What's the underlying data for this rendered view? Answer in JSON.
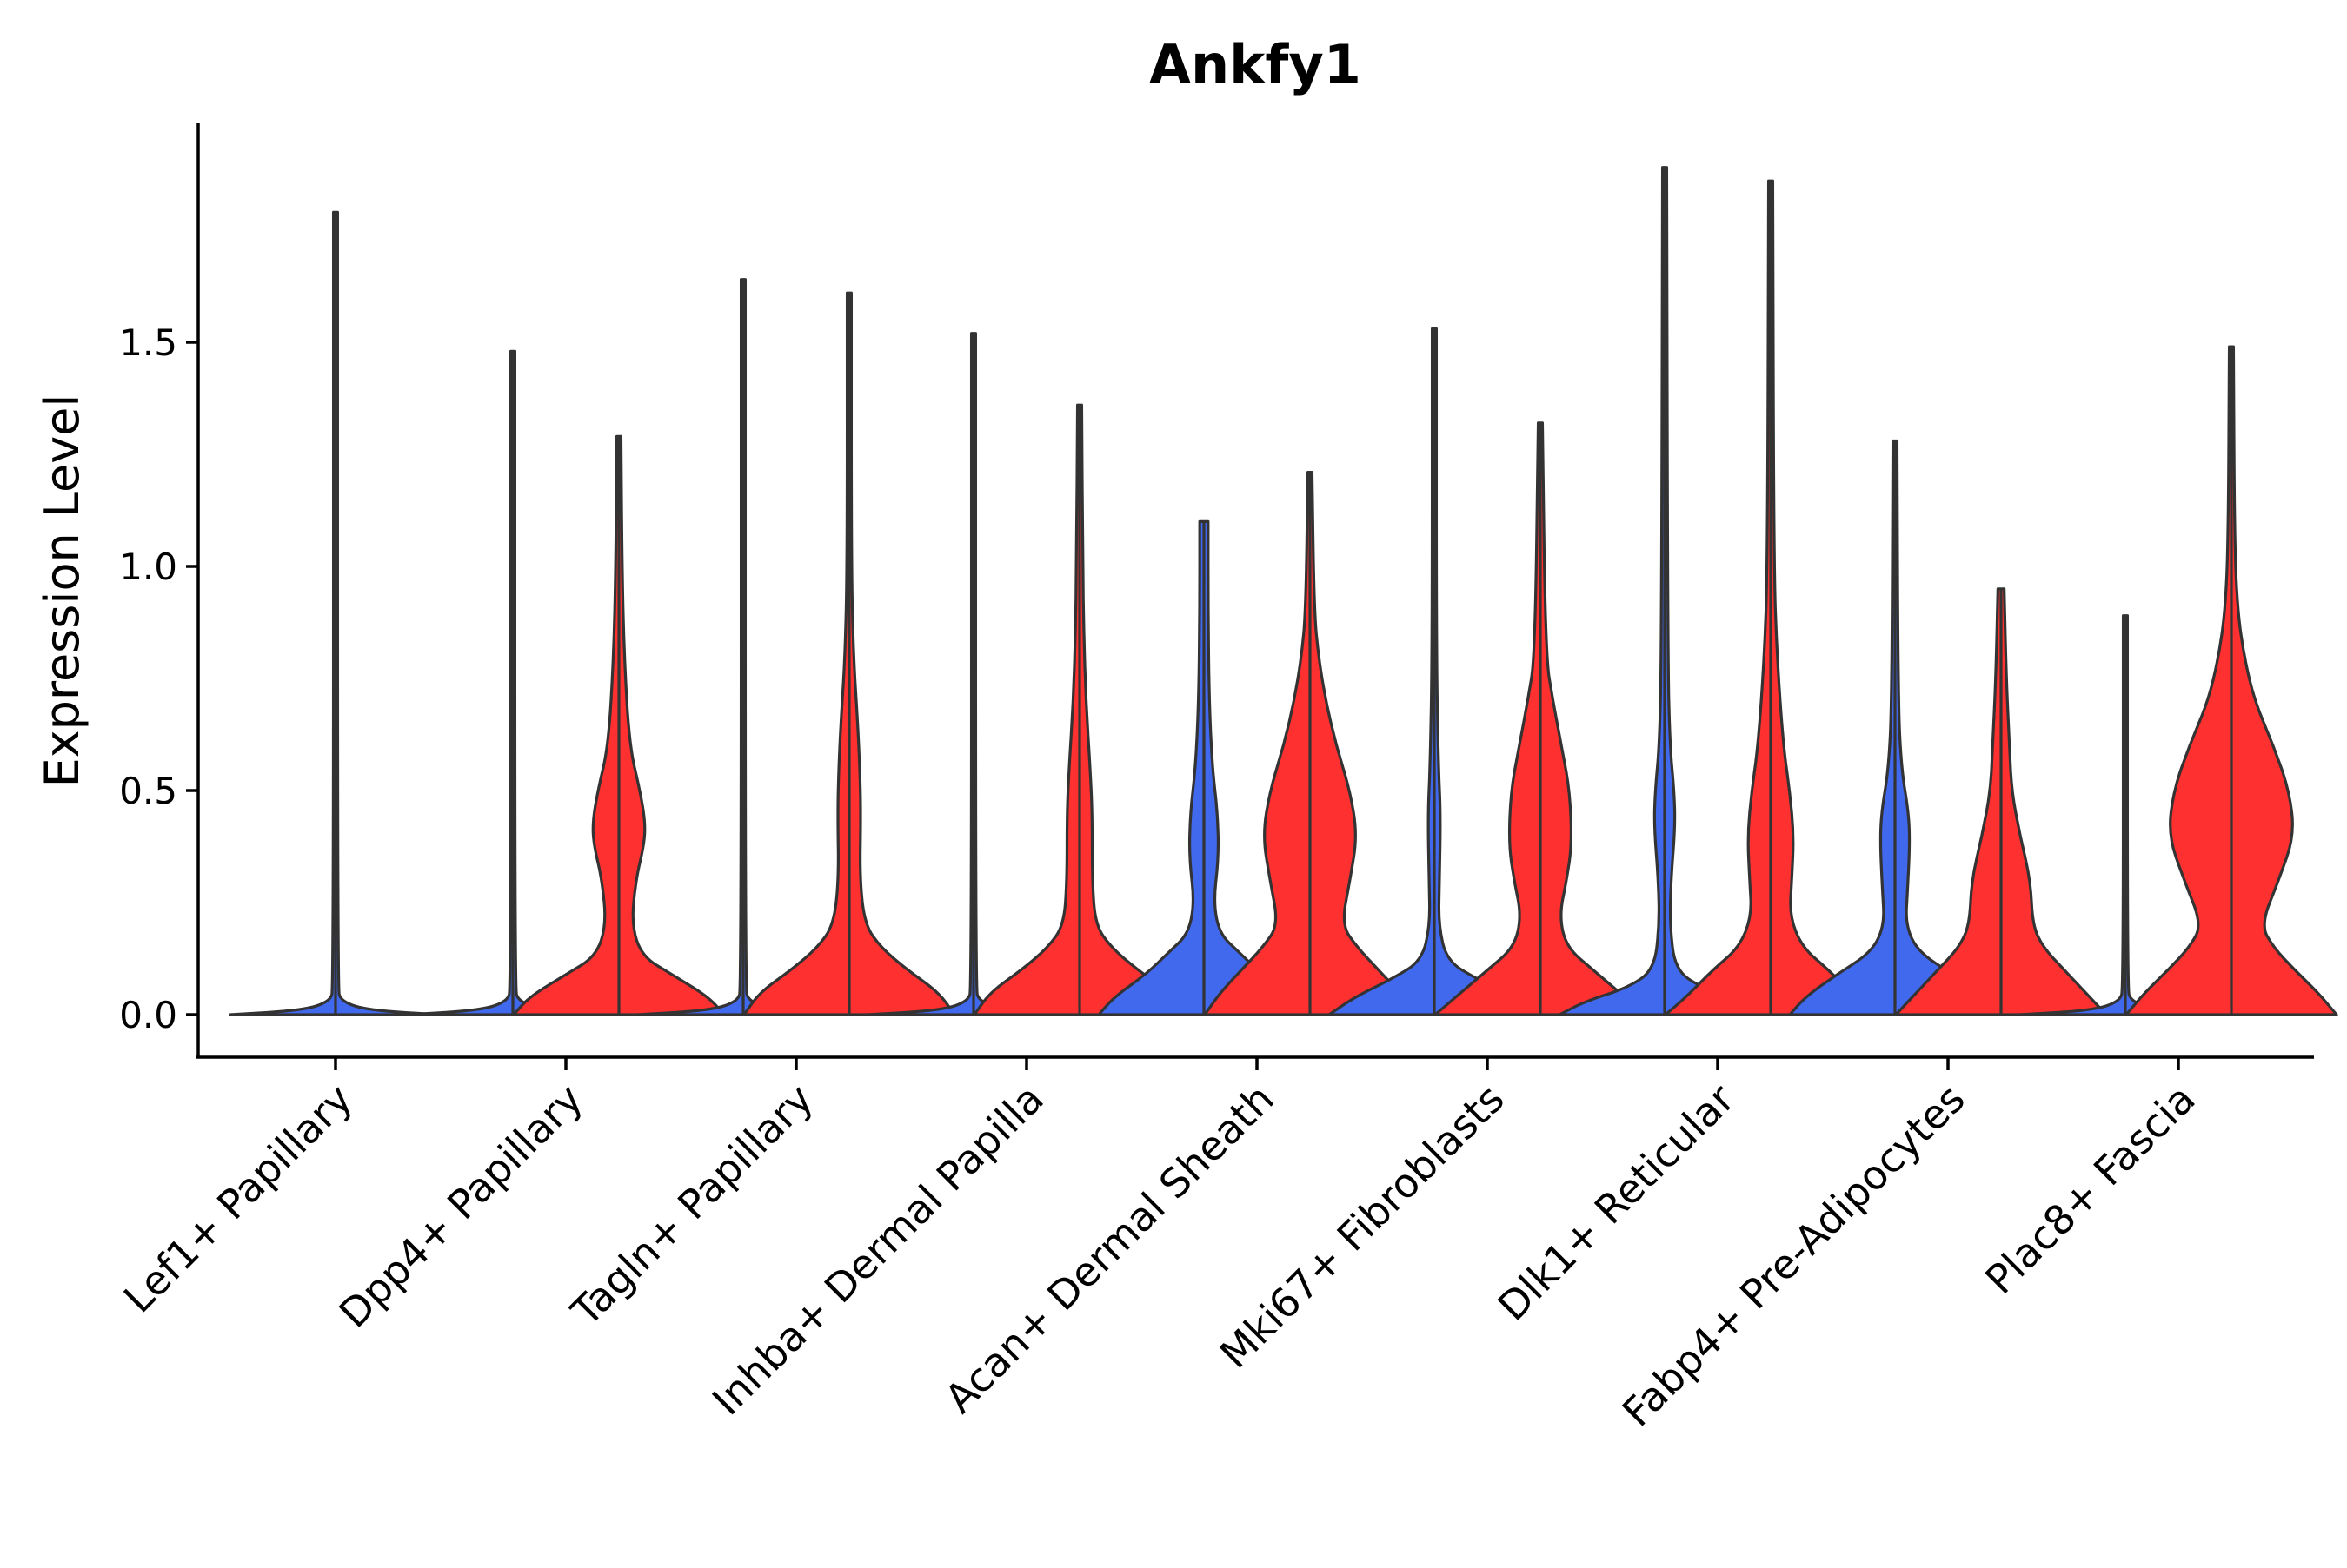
{
  "chart_data": {
    "type": "violin",
    "title": "Ankfy1",
    "xlabel": "",
    "ylabel": "Expression Level",
    "ylim": [
      -0.1,
      1.95
    ],
    "yticks": [
      0.0,
      0.5,
      1.0,
      1.5
    ],
    "ytick_labels": [
      "0.0",
      "0.5",
      "1.0",
      "1.5"
    ],
    "colors": {
      "group1": "#4169EE",
      "group2": "#FF3030",
      "outline": "#333333"
    },
    "categories": [
      "Lef1+ Papillary",
      "Dpp4+ Papillary",
      "Tagln+ Papillary",
      "Inhba+ Dermal Papilla",
      "Acan+ Dermal Sheath",
      "Mki67+ Fibroblasts",
      "Dlk1+ Reticular",
      "Fabp4+ Pre-Adipocytes",
      "Plac8+ Fascia"
    ],
    "series": [
      {
        "name": "group1",
        "color": "#4169EE",
        "violins": [
          {
            "max": 1.79,
            "profile": [
              [
                0,
                1
              ],
              [
                0.01,
                0.3
              ],
              [
                0.03,
                0.05
              ],
              [
                0.06,
                0.02
              ],
              [
                1.79,
                0.02
              ]
            ]
          },
          {
            "max": 1.48,
            "profile": [
              [
                0,
                1
              ],
              [
                0.01,
                0.3
              ],
              [
                0.03,
                0.05
              ],
              [
                0.06,
                0.02
              ],
              [
                1.48,
                0.02
              ]
            ]
          },
          {
            "max": 1.64,
            "profile": [
              [
                0,
                1
              ],
              [
                0.01,
                0.3
              ],
              [
                0.03,
                0.05
              ],
              [
                0.06,
                0.02
              ],
              [
                1.64,
                0.02
              ]
            ]
          },
          {
            "max": 1.52,
            "profile": [
              [
                0,
                1
              ],
              [
                0.01,
                0.3
              ],
              [
                0.03,
                0.05
              ],
              [
                0.06,
                0.02
              ],
              [
                1.52,
                0.02
              ]
            ]
          },
          {
            "max": 1.1,
            "profile": [
              [
                0,
                1
              ],
              [
                0.04,
                0.85
              ],
              [
                0.09,
                0.55
              ],
              [
                0.14,
                0.33
              ],
              [
                0.18,
                0.15
              ],
              [
                0.25,
                0.09
              ],
              [
                0.35,
                0.14
              ],
              [
                0.45,
                0.13
              ],
              [
                0.55,
                0.08
              ],
              [
                0.7,
                0.05
              ],
              [
                0.9,
                0.04
              ],
              [
                1.1,
                0.04
              ]
            ]
          },
          {
            "max": 1.53,
            "profile": [
              [
                0,
                1
              ],
              [
                0.04,
                0.75
              ],
              [
                0.08,
                0.4
              ],
              [
                0.12,
                0.12
              ],
              [
                0.2,
                0.04
              ],
              [
                0.3,
                0.05
              ],
              [
                0.45,
                0.06
              ],
              [
                0.55,
                0.04
              ],
              [
                0.8,
                0.02
              ],
              [
                1.53,
                0.02
              ]
            ]
          },
          {
            "max": 1.89,
            "profile": [
              [
                0,
                1
              ],
              [
                0.03,
                0.75
              ],
              [
                0.06,
                0.35
              ],
              [
                0.1,
                0.1
              ],
              [
                0.2,
                0.05
              ],
              [
                0.3,
                0.06
              ],
              [
                0.42,
                0.1
              ],
              [
                0.5,
                0.09
              ],
              [
                0.6,
                0.05
              ],
              [
                0.8,
                0.03
              ],
              [
                1.89,
                0.02
              ]
            ]
          },
          {
            "max": 1.28,
            "profile": [
              [
                0,
                1
              ],
              [
                0.04,
                0.85
              ],
              [
                0.09,
                0.55
              ],
              [
                0.14,
                0.22
              ],
              [
                0.2,
                0.1
              ],
              [
                0.28,
                0.12
              ],
              [
                0.38,
                0.14
              ],
              [
                0.45,
                0.13
              ],
              [
                0.55,
                0.06
              ],
              [
                0.7,
                0.03
              ],
              [
                1.28,
                0.02
              ]
            ]
          },
          {
            "max": 0.89,
            "profile": [
              [
                0,
                1
              ],
              [
                0.01,
                0.3
              ],
              [
                0.03,
                0.05
              ],
              [
                0.06,
                0.02
              ],
              [
                0.89,
                0.02
              ]
            ]
          }
        ]
      },
      {
        "name": "group2",
        "color": "#FF3030",
        "violins": [
          null,
          {
            "max": 1.29,
            "profile": [
              [
                0,
                1
              ],
              [
                0.04,
                0.85
              ],
              [
                0.09,
                0.5
              ],
              [
                0.13,
                0.22
              ],
              [
                0.2,
                0.12
              ],
              [
                0.3,
                0.16
              ],
              [
                0.38,
                0.24
              ],
              [
                0.43,
                0.25
              ],
              [
                0.5,
                0.2
              ],
              [
                0.6,
                0.1
              ],
              [
                0.8,
                0.05
              ],
              [
                1.0,
                0.03
              ],
              [
                1.29,
                0.02
              ]
            ]
          },
          {
            "max": 1.61,
            "profile": [
              [
                0,
                1
              ],
              [
                0.05,
                0.85
              ],
              [
                0.1,
                0.55
              ],
              [
                0.15,
                0.3
              ],
              [
                0.2,
                0.15
              ],
              [
                0.3,
                0.1
              ],
              [
                0.45,
                0.11
              ],
              [
                0.55,
                0.1
              ],
              [
                0.65,
                0.08
              ],
              [
                0.8,
                0.04
              ],
              [
                1.0,
                0.02
              ],
              [
                1.61,
                0.02
              ]
            ]
          },
          {
            "max": 1.36,
            "profile": [
              [
                0,
                1
              ],
              [
                0.05,
                0.85
              ],
              [
                0.1,
                0.55
              ],
              [
                0.15,
                0.3
              ],
              [
                0.2,
                0.15
              ],
              [
                0.3,
                0.12
              ],
              [
                0.45,
                0.12
              ],
              [
                0.55,
                0.1
              ],
              [
                0.7,
                0.06
              ],
              [
                0.85,
                0.04
              ],
              [
                1.0,
                0.03
              ],
              [
                1.36,
                0.02
              ]
            ]
          },
          {
            "max": 1.21,
            "profile": [
              [
                0,
                1
              ],
              [
                0.05,
                0.85
              ],
              [
                0.1,
                0.65
              ],
              [
                0.15,
                0.45
              ],
              [
                0.2,
                0.3
              ],
              [
                0.3,
                0.38
              ],
              [
                0.4,
                0.45
              ],
              [
                0.5,
                0.38
              ],
              [
                0.6,
                0.25
              ],
              [
                0.7,
                0.15
              ],
              [
                0.8,
                0.08
              ],
              [
                0.9,
                0.04
              ],
              [
                1.21,
                0.02
              ]
            ]
          },
          {
            "max": 1.32,
            "profile": [
              [
                0,
                1
              ],
              [
                0.04,
                0.8
              ],
              [
                0.1,
                0.5
              ],
              [
                0.15,
                0.25
              ],
              [
                0.22,
                0.18
              ],
              [
                0.3,
                0.25
              ],
              [
                0.38,
                0.3
              ],
              [
                0.5,
                0.28
              ],
              [
                0.6,
                0.2
              ],
              [
                0.7,
                0.12
              ],
              [
                0.8,
                0.05
              ],
              [
                1.32,
                0.02
              ]
            ]
          },
          {
            "max": 1.86,
            "profile": [
              [
                0,
                1
              ],
              [
                0.04,
                0.8
              ],
              [
                0.1,
                0.55
              ],
              [
                0.15,
                0.3
              ],
              [
                0.22,
                0.18
              ],
              [
                0.3,
                0.2
              ],
              [
                0.4,
                0.22
              ],
              [
                0.5,
                0.18
              ],
              [
                0.6,
                0.12
              ],
              [
                0.8,
                0.06
              ],
              [
                1.0,
                0.03
              ],
              [
                1.86,
                0.02
              ]
            ]
          },
          {
            "max": 0.95,
            "profile": [
              [
                0,
                1
              ],
              [
                0.05,
                0.8
              ],
              [
                0.1,
                0.6
              ],
              [
                0.15,
                0.4
              ],
              [
                0.2,
                0.3
              ],
              [
                0.3,
                0.28
              ],
              [
                0.4,
                0.18
              ],
              [
                0.5,
                0.1
              ],
              [
                0.6,
                0.08
              ],
              [
                0.75,
                0.05
              ],
              [
                0.95,
                0.03
              ]
            ]
          },
          {
            "max": 1.49,
            "profile": [
              [
                0,
                1
              ],
              [
                0.05,
                0.82
              ],
              [
                0.1,
                0.6
              ],
              [
                0.15,
                0.4
              ],
              [
                0.2,
                0.28
              ],
              [
                0.3,
                0.45
              ],
              [
                0.4,
                0.6
              ],
              [
                0.5,
                0.55
              ],
              [
                0.6,
                0.4
              ],
              [
                0.7,
                0.22
              ],
              [
                0.8,
                0.12
              ],
              [
                0.9,
                0.06
              ],
              [
                1.05,
                0.03
              ],
              [
                1.49,
                0.02
              ]
            ]
          }
        ]
      }
    ]
  }
}
